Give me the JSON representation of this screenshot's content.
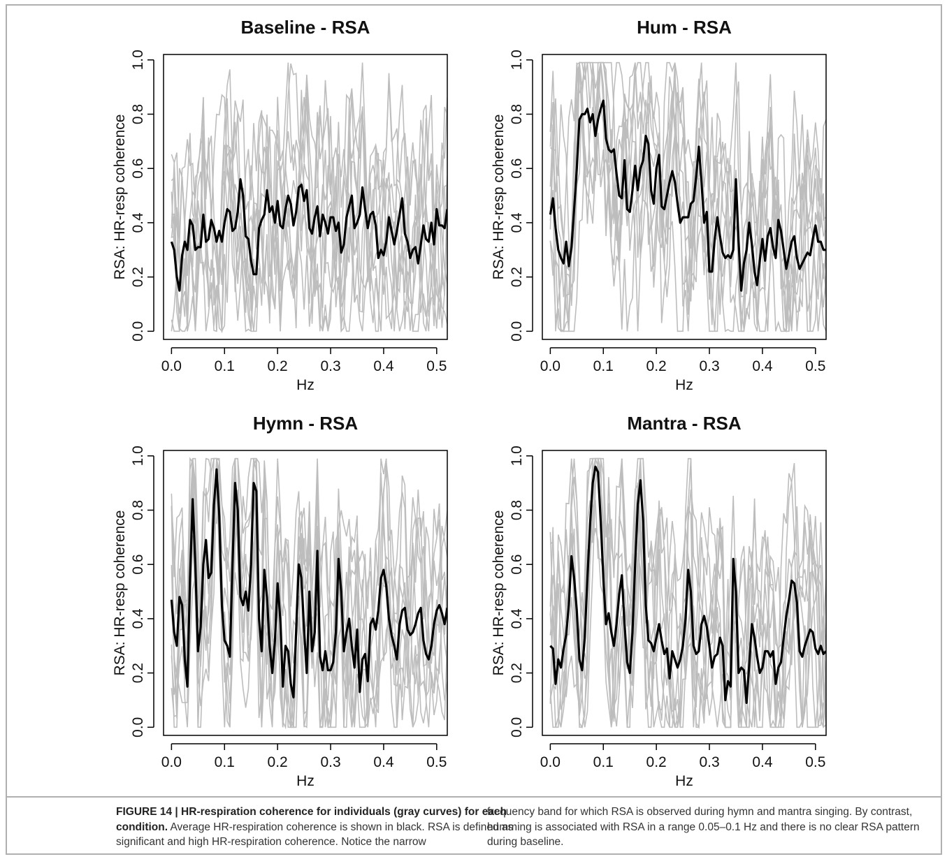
{
  "figure": {
    "caption_label": "FIGURE 14 | HR-respiration coherence for individuals (gray curves) for each condition.",
    "caption_left_rest": " Average HR-respiration coherence is shown in black. RSA is defined as significant and high HR-respiration coherence. Notice the narrow",
    "caption_right": "frequency band for which RSA is observed during hymn and mantra singing. By contrast, humming is associated with RSA in a range 0.05–0.1 Hz and there is no clear RSA pattern during baseline."
  },
  "chart_data": [
    {
      "type": "line",
      "title": "Baseline - RSA",
      "xlabel": "Hz",
      "ylabel": "RSA: HR-resp coherence",
      "xlim": [
        -0.015,
        0.52
      ],
      "ylim": [
        -0.03,
        1.02
      ],
      "xticks": [
        "0.0",
        "0.1",
        "0.2",
        "0.3",
        "0.4",
        "0.5"
      ],
      "yticks": [
        "0.0",
        "0.2",
        "0.4",
        "0.6",
        "0.8",
        "1.0"
      ],
      "grid": false,
      "individual_color": "#bdbdbd",
      "average_color": "#000000",
      "average_series": {
        "x": [
          0.0,
          0.005,
          0.01,
          0.015,
          0.02,
          0.025,
          0.03,
          0.035,
          0.04,
          0.045,
          0.05,
          0.055,
          0.06,
          0.065,
          0.07,
          0.075,
          0.08,
          0.085,
          0.09,
          0.095,
          0.1,
          0.105,
          0.11,
          0.115,
          0.12,
          0.125,
          0.13,
          0.135,
          0.14,
          0.145,
          0.15,
          0.155,
          0.16,
          0.165,
          0.17,
          0.175,
          0.18,
          0.185,
          0.19,
          0.195,
          0.2,
          0.205,
          0.21,
          0.215,
          0.22,
          0.225,
          0.23,
          0.235,
          0.24,
          0.245,
          0.25,
          0.255,
          0.26,
          0.265,
          0.27,
          0.275,
          0.28,
          0.285,
          0.29,
          0.295,
          0.3,
          0.305,
          0.31,
          0.315,
          0.32,
          0.325,
          0.33,
          0.335,
          0.34,
          0.345,
          0.35,
          0.355,
          0.36,
          0.365,
          0.37,
          0.375,
          0.38,
          0.385,
          0.39,
          0.395,
          0.4,
          0.405,
          0.41,
          0.415,
          0.42,
          0.425,
          0.43,
          0.435,
          0.44,
          0.445,
          0.45,
          0.455,
          0.46,
          0.465,
          0.47,
          0.475,
          0.48,
          0.485,
          0.49,
          0.495,
          0.5,
          0.505,
          0.51,
          0.515,
          0.52
        ],
        "y": [
          0.33,
          0.3,
          0.2,
          0.15,
          0.28,
          0.33,
          0.3,
          0.41,
          0.39,
          0.3,
          0.31,
          0.31,
          0.43,
          0.33,
          0.34,
          0.41,
          0.38,
          0.33,
          0.37,
          0.33,
          0.4,
          0.45,
          0.44,
          0.37,
          0.38,
          0.44,
          0.56,
          0.5,
          0.35,
          0.34,
          0.26,
          0.21,
          0.21,
          0.38,
          0.41,
          0.43,
          0.52,
          0.44,
          0.46,
          0.4,
          0.48,
          0.39,
          0.38,
          0.45,
          0.5,
          0.47,
          0.39,
          0.44,
          0.53,
          0.54,
          0.48,
          0.52,
          0.38,
          0.36,
          0.42,
          0.46,
          0.35,
          0.43,
          0.4,
          0.36,
          0.42,
          0.42,
          0.37,
          0.4,
          0.29,
          0.32,
          0.42,
          0.46,
          0.5,
          0.38,
          0.4,
          0.43,
          0.53,
          0.45,
          0.38,
          0.43,
          0.44,
          0.39,
          0.27,
          0.3,
          0.28,
          0.33,
          0.42,
          0.37,
          0.32,
          0.37,
          0.43,
          0.49,
          0.36,
          0.33,
          0.27,
          0.3,
          0.31,
          0.25,
          0.32,
          0.39,
          0.34,
          0.33,
          0.4,
          0.32,
          0.45,
          0.39,
          0.39,
          0.38,
          0.45
        ]
      }
    },
    {
      "type": "line",
      "title": "Hum - RSA",
      "xlabel": "Hz",
      "ylabel": "RSA: HR-resp coherence",
      "xlim": [
        -0.015,
        0.52
      ],
      "ylim": [
        -0.03,
        1.02
      ],
      "xticks": [
        "0.0",
        "0.1",
        "0.2",
        "0.3",
        "0.4",
        "0.5"
      ],
      "yticks": [
        "0.0",
        "0.2",
        "0.4",
        "0.6",
        "0.8",
        "1.0"
      ],
      "grid": false,
      "individual_color": "#bdbdbd",
      "average_color": "#000000",
      "average_series": {
        "x": [
          0.0,
          0.005,
          0.01,
          0.015,
          0.02,
          0.025,
          0.03,
          0.035,
          0.04,
          0.045,
          0.05,
          0.055,
          0.06,
          0.065,
          0.07,
          0.075,
          0.08,
          0.085,
          0.09,
          0.095,
          0.1,
          0.105,
          0.11,
          0.115,
          0.12,
          0.125,
          0.13,
          0.135,
          0.14,
          0.145,
          0.15,
          0.155,
          0.16,
          0.165,
          0.17,
          0.175,
          0.18,
          0.185,
          0.19,
          0.195,
          0.2,
          0.205,
          0.21,
          0.215,
          0.22,
          0.225,
          0.23,
          0.235,
          0.24,
          0.245,
          0.25,
          0.255,
          0.26,
          0.265,
          0.27,
          0.275,
          0.28,
          0.285,
          0.29,
          0.295,
          0.3,
          0.305,
          0.31,
          0.315,
          0.32,
          0.325,
          0.33,
          0.335,
          0.34,
          0.345,
          0.35,
          0.355,
          0.36,
          0.365,
          0.37,
          0.375,
          0.38,
          0.385,
          0.39,
          0.395,
          0.4,
          0.405,
          0.41,
          0.415,
          0.42,
          0.425,
          0.43,
          0.435,
          0.44,
          0.445,
          0.45,
          0.455,
          0.46,
          0.465,
          0.47,
          0.475,
          0.48,
          0.485,
          0.49,
          0.495,
          0.5,
          0.505,
          0.51,
          0.515,
          0.52
        ],
        "y": [
          0.43,
          0.49,
          0.38,
          0.3,
          0.27,
          0.25,
          0.33,
          0.24,
          0.31,
          0.45,
          0.6,
          0.78,
          0.8,
          0.8,
          0.82,
          0.77,
          0.8,
          0.72,
          0.78,
          0.82,
          0.85,
          0.71,
          0.67,
          0.66,
          0.67,
          0.58,
          0.5,
          0.49,
          0.63,
          0.45,
          0.44,
          0.52,
          0.61,
          0.52,
          0.6,
          0.63,
          0.72,
          0.69,
          0.52,
          0.47,
          0.6,
          0.65,
          0.46,
          0.45,
          0.5,
          0.55,
          0.59,
          0.55,
          0.47,
          0.4,
          0.42,
          0.42,
          0.42,
          0.47,
          0.48,
          0.57,
          0.68,
          0.55,
          0.4,
          0.44,
          0.22,
          0.22,
          0.34,
          0.42,
          0.35,
          0.29,
          0.27,
          0.28,
          0.27,
          0.3,
          0.56,
          0.33,
          0.15,
          0.25,
          0.3,
          0.4,
          0.32,
          0.22,
          0.17,
          0.26,
          0.34,
          0.26,
          0.35,
          0.38,
          0.31,
          0.27,
          0.41,
          0.37,
          0.3,
          0.23,
          0.28,
          0.33,
          0.35,
          0.27,
          0.23,
          0.25,
          0.27,
          0.29,
          0.28,
          0.34,
          0.39,
          0.33,
          0.33,
          0.3,
          0.3
        ]
      }
    },
    {
      "type": "line",
      "title": "Hymn - RSA",
      "xlabel": "Hz",
      "ylabel": "RSA: HR-resp coherence",
      "xlim": [
        -0.015,
        0.52
      ],
      "ylim": [
        -0.03,
        1.02
      ],
      "xticks": [
        "0.0",
        "0.1",
        "0.2",
        "0.3",
        "0.4",
        "0.5"
      ],
      "yticks": [
        "0.0",
        "0.2",
        "0.4",
        "0.6",
        "0.8",
        "1.0"
      ],
      "grid": false,
      "individual_color": "#bdbdbd",
      "average_color": "#000000",
      "average_series": {
        "x": [
          0.0,
          0.005,
          0.01,
          0.015,
          0.02,
          0.025,
          0.03,
          0.035,
          0.04,
          0.045,
          0.05,
          0.055,
          0.06,
          0.065,
          0.07,
          0.075,
          0.08,
          0.085,
          0.09,
          0.095,
          0.1,
          0.105,
          0.11,
          0.115,
          0.12,
          0.125,
          0.13,
          0.135,
          0.14,
          0.145,
          0.15,
          0.155,
          0.16,
          0.165,
          0.17,
          0.175,
          0.18,
          0.185,
          0.19,
          0.195,
          0.2,
          0.205,
          0.21,
          0.215,
          0.22,
          0.225,
          0.23,
          0.235,
          0.24,
          0.245,
          0.25,
          0.255,
          0.26,
          0.265,
          0.27,
          0.275,
          0.28,
          0.285,
          0.29,
          0.295,
          0.3,
          0.305,
          0.31,
          0.315,
          0.32,
          0.325,
          0.33,
          0.335,
          0.34,
          0.345,
          0.35,
          0.355,
          0.36,
          0.365,
          0.37,
          0.375,
          0.38,
          0.385,
          0.39,
          0.395,
          0.4,
          0.405,
          0.41,
          0.415,
          0.42,
          0.425,
          0.43,
          0.435,
          0.44,
          0.445,
          0.45,
          0.455,
          0.46,
          0.465,
          0.47,
          0.475,
          0.48,
          0.485,
          0.49,
          0.495,
          0.5,
          0.505,
          0.51,
          0.515,
          0.52
        ],
        "y": [
          0.47,
          0.35,
          0.3,
          0.48,
          0.45,
          0.25,
          0.15,
          0.55,
          0.84,
          0.6,
          0.28,
          0.37,
          0.6,
          0.69,
          0.55,
          0.57,
          0.82,
          0.95,
          0.78,
          0.45,
          0.32,
          0.3,
          0.26,
          0.6,
          0.9,
          0.8,
          0.48,
          0.45,
          0.5,
          0.43,
          0.6,
          0.9,
          0.87,
          0.4,
          0.28,
          0.58,
          0.48,
          0.3,
          0.2,
          0.32,
          0.53,
          0.4,
          0.15,
          0.3,
          0.28,
          0.16,
          0.11,
          0.35,
          0.6,
          0.55,
          0.36,
          0.2,
          0.5,
          0.28,
          0.35,
          0.65,
          0.26,
          0.21,
          0.28,
          0.21,
          0.21,
          0.24,
          0.35,
          0.62,
          0.5,
          0.28,
          0.35,
          0.4,
          0.3,
          0.22,
          0.36,
          0.13,
          0.25,
          0.27,
          0.17,
          0.38,
          0.4,
          0.36,
          0.43,
          0.55,
          0.58,
          0.52,
          0.4,
          0.34,
          0.3,
          0.25,
          0.38,
          0.43,
          0.44,
          0.36,
          0.34,
          0.35,
          0.38,
          0.42,
          0.44,
          0.32,
          0.27,
          0.25,
          0.3,
          0.38,
          0.43,
          0.45,
          0.42,
          0.38,
          0.44
        ]
      }
    },
    {
      "type": "line",
      "title": "Mantra - RSA",
      "xlabel": "Hz",
      "ylabel": "RSA: HR-resp coherence",
      "xlim": [
        -0.015,
        0.52
      ],
      "ylim": [
        -0.03,
        1.02
      ],
      "xticks": [
        "0.0",
        "0.1",
        "0.2",
        "0.3",
        "0.4",
        "0.5"
      ],
      "yticks": [
        "0.0",
        "0.2",
        "0.4",
        "0.6",
        "0.8",
        "1.0"
      ],
      "grid": false,
      "individual_color": "#bdbdbd",
      "average_color": "#000000",
      "average_series": {
        "x": [
          0.0,
          0.005,
          0.01,
          0.015,
          0.02,
          0.025,
          0.03,
          0.035,
          0.04,
          0.045,
          0.05,
          0.055,
          0.06,
          0.065,
          0.07,
          0.075,
          0.08,
          0.085,
          0.09,
          0.095,
          0.1,
          0.105,
          0.11,
          0.115,
          0.12,
          0.125,
          0.13,
          0.135,
          0.14,
          0.145,
          0.15,
          0.155,
          0.16,
          0.165,
          0.17,
          0.175,
          0.18,
          0.185,
          0.19,
          0.195,
          0.2,
          0.205,
          0.21,
          0.215,
          0.22,
          0.225,
          0.23,
          0.235,
          0.24,
          0.245,
          0.25,
          0.255,
          0.26,
          0.265,
          0.27,
          0.275,
          0.28,
          0.285,
          0.29,
          0.295,
          0.3,
          0.305,
          0.31,
          0.315,
          0.32,
          0.325,
          0.33,
          0.335,
          0.34,
          0.345,
          0.35,
          0.355,
          0.36,
          0.365,
          0.37,
          0.375,
          0.38,
          0.385,
          0.39,
          0.395,
          0.4,
          0.405,
          0.41,
          0.415,
          0.42,
          0.425,
          0.43,
          0.435,
          0.44,
          0.445,
          0.45,
          0.455,
          0.46,
          0.465,
          0.47,
          0.475,
          0.48,
          0.485,
          0.49,
          0.495,
          0.5,
          0.505,
          0.51,
          0.515,
          0.52
        ],
        "y": [
          0.3,
          0.29,
          0.16,
          0.25,
          0.22,
          0.29,
          0.34,
          0.45,
          0.63,
          0.55,
          0.43,
          0.25,
          0.21,
          0.33,
          0.55,
          0.75,
          0.9,
          0.96,
          0.94,
          0.76,
          0.55,
          0.38,
          0.42,
          0.35,
          0.3,
          0.38,
          0.49,
          0.56,
          0.38,
          0.24,
          0.2,
          0.35,
          0.6,
          0.82,
          0.91,
          0.76,
          0.45,
          0.32,
          0.31,
          0.28,
          0.33,
          0.38,
          0.32,
          0.27,
          0.29,
          0.18,
          0.28,
          0.25,
          0.22,
          0.25,
          0.3,
          0.4,
          0.58,
          0.5,
          0.3,
          0.27,
          0.28,
          0.38,
          0.41,
          0.37,
          0.3,
          0.22,
          0.26,
          0.27,
          0.33,
          0.3,
          0.1,
          0.17,
          0.15,
          0.62,
          0.5,
          0.2,
          0.22,
          0.21,
          0.09,
          0.23,
          0.38,
          0.33,
          0.26,
          0.2,
          0.22,
          0.28,
          0.28,
          0.26,
          0.28,
          0.16,
          0.22,
          0.24,
          0.33,
          0.41,
          0.47,
          0.54,
          0.53,
          0.46,
          0.28,
          0.26,
          0.3,
          0.33,
          0.36,
          0.35,
          0.29,
          0.27,
          0.3,
          0.27,
          0.28
        ]
      }
    }
  ]
}
